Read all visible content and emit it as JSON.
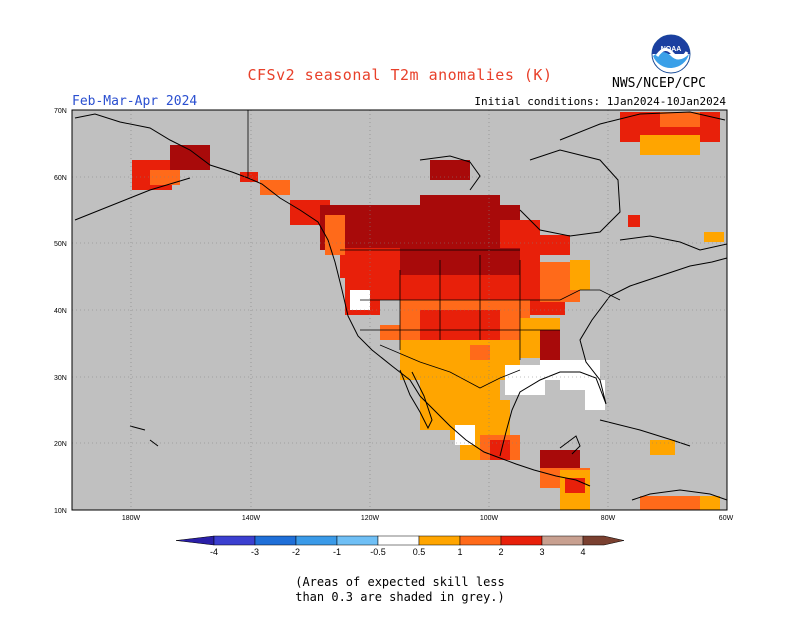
{
  "header": {
    "title": "CFSv2 seasonal T2m anomalies (K)",
    "period": "Feb-Mar-Apr 2024",
    "initial_conditions": "Initial conditions: 1Jan2024-10Jan2024",
    "agency": "NWS/NCEP/CPC",
    "logo_text": "NOAA"
  },
  "map": {
    "lat_labels": [
      "70N",
      "60N",
      "50N",
      "40N",
      "30N",
      "20N",
      "10N"
    ],
    "lon_labels": [
      "180W",
      "140W",
      "120W",
      "100W",
      "80W",
      "60W"
    ],
    "land_color": "#c0c0c0",
    "ocean_color": "#c0c0c0"
  },
  "colorbar": {
    "ticks": [
      "-4",
      "-3",
      "-2",
      "-1",
      "-0.5",
      "0.5",
      "1",
      "2",
      "3",
      "4"
    ],
    "colors": [
      "#2a1fa8",
      "#3b3fd0",
      "#1f6fd8",
      "#3a9ae8",
      "#6fbff5",
      "#ffffff",
      "#ffa500",
      "#ff6a1a",
      "#e8200a",
      "#a80a0a",
      "#c8a090",
      "#7a4030"
    ]
  },
  "note": {
    "line1": "(Areas of expected skill less",
    "line2": "than 0.3 are shaded in grey.)"
  }
}
